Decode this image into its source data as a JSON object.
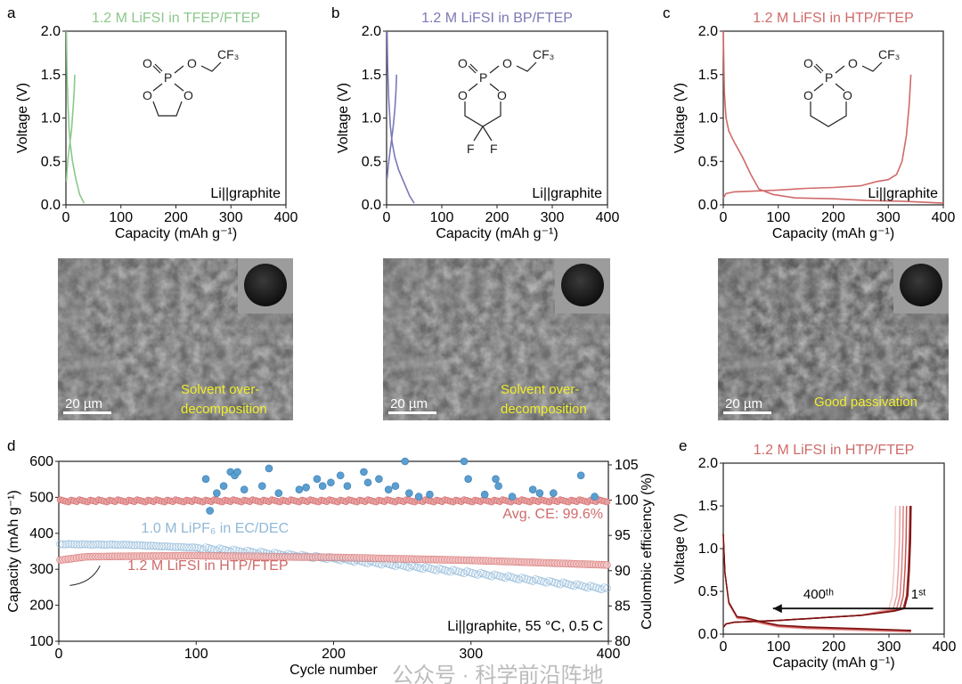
{
  "panel_letters": [
    "a",
    "b",
    "c",
    "d",
    "e"
  ],
  "sem": [
    {
      "caption_line1": "Solvent over-",
      "caption_line2": "decomposition",
      "scale_bar": "20 µm"
    },
    {
      "caption_line1": "Solvent over-",
      "caption_line2": "decomposition",
      "scale_bar": "20 µm"
    },
    {
      "caption_line1": "Good passivation",
      "caption_line2": "",
      "scale_bar": "20 µm"
    }
  ],
  "molecules": {
    "a": {
      "atoms": [
        "O",
        "P",
        "O",
        "CF₃",
        "O",
        "O"
      ]
    },
    "b": {
      "atoms": [
        "O",
        "P",
        "O",
        "CF₃",
        "O",
        "O",
        "F",
        "F"
      ]
    },
    "c": {
      "atoms": [
        "O",
        "P",
        "O",
        "CF₃",
        "O",
        "O"
      ]
    }
  },
  "watermark": "公众号 · 科学前沿阵地",
  "colors": {
    "green": "#8cc88c",
    "purple": "#7b78b8",
    "red": "#d06a6a",
    "blue": "#8fb8d8",
    "dark_red": "#7a1010"
  },
  "chart_data": [
    {
      "id": "a",
      "type": "line",
      "title": "1.2 M LiFSI in TFEP/FTEP",
      "xlabel": "Capacity (mAh g⁻¹)",
      "ylabel": "Voltage (V)",
      "xlim": [
        0,
        400
      ],
      "ylim": [
        0,
        2
      ],
      "xticks": [
        "0",
        "100",
        "200",
        "300",
        "400"
      ],
      "yticks": [
        "0.0",
        "0.5",
        "1.0",
        "1.5",
        "2.0"
      ],
      "annotation": "Li||graphite",
      "series": [
        {
          "name": "discharge",
          "x": [
            1,
            2,
            4,
            6,
            8,
            12,
            18,
            25,
            33
          ],
          "y": [
            2.0,
            1.5,
            1.1,
            0.85,
            0.7,
            0.5,
            0.3,
            0.12,
            0.02
          ]
        },
        {
          "name": "charge",
          "x": [
            1,
            2,
            4,
            7,
            10,
            13,
            15,
            16
          ],
          "y": [
            0.27,
            0.4,
            0.55,
            0.7,
            0.85,
            1.1,
            1.3,
            1.5
          ]
        }
      ]
    },
    {
      "id": "b",
      "type": "line",
      "title": "1.2 M LiFSI in BP/FTEP",
      "xlabel": "Capacity (mAh g⁻¹)",
      "ylabel": "Voltage (V)",
      "xlim": [
        0,
        400
      ],
      "ylim": [
        0,
        2
      ],
      "xticks": [
        "0",
        "100",
        "200",
        "300",
        "400"
      ],
      "yticks": [
        "0.0",
        "0.5",
        "1.0",
        "1.5",
        "2.0"
      ],
      "annotation": "Li||graphite",
      "series": [
        {
          "name": "discharge",
          "x": [
            1,
            2,
            4,
            7,
            10,
            15,
            22,
            32,
            42,
            50
          ],
          "y": [
            2.0,
            1.6,
            1.2,
            0.9,
            0.72,
            0.55,
            0.4,
            0.25,
            0.1,
            0.02
          ]
        },
        {
          "name": "charge",
          "x": [
            1,
            3,
            6,
            9,
            12,
            15,
            17,
            18
          ],
          "y": [
            0.3,
            0.45,
            0.6,
            0.75,
            0.9,
            1.1,
            1.3,
            1.5
          ]
        }
      ]
    },
    {
      "id": "c",
      "type": "line",
      "title": "1.2 M LiFSI in HTP/FTEP",
      "xlabel": "Capacity (mAh g⁻¹)",
      "ylabel": "Voltage (V)",
      "xlim": [
        0,
        400
      ],
      "ylim": [
        0,
        2
      ],
      "xticks": [
        "0",
        "100",
        "200",
        "300",
        "400"
      ],
      "yticks": [
        "0.0",
        "0.5",
        "1.0",
        "1.5",
        "2.0"
      ],
      "annotation": "Li||graphite",
      "series": [
        {
          "name": "discharge",
          "x": [
            0,
            2,
            5,
            10,
            20,
            35,
            50,
            65,
            90,
            130,
            200,
            260,
            330,
            400
          ],
          "y": [
            2.0,
            1.3,
            1.0,
            0.85,
            0.72,
            0.55,
            0.35,
            0.18,
            0.12,
            0.08,
            0.07,
            0.05,
            0.04,
            0.02
          ]
        },
        {
          "name": "charge",
          "x": [
            0,
            5,
            20,
            60,
            100,
            150,
            200,
            250,
            280,
            300,
            315,
            325,
            333,
            338,
            341
          ],
          "y": [
            0.08,
            0.13,
            0.15,
            0.16,
            0.17,
            0.19,
            0.2,
            0.22,
            0.27,
            0.29,
            0.35,
            0.5,
            0.8,
            1.15,
            1.5
          ]
        }
      ]
    },
    {
      "id": "d",
      "type": "scatter",
      "xlabel": "Cycle number",
      "ylabel": "Capacity (mAh g⁻¹)",
      "y2label": "Coulombic efficiency (%)",
      "xlim": [
        0,
        400
      ],
      "ylim": [
        100,
        600
      ],
      "y2lim": [
        80,
        105.5
      ],
      "xticks": [
        "0",
        "100",
        "200",
        "300",
        "400"
      ],
      "yticks": [
        "100",
        "200",
        "300",
        "400",
        "500",
        "600"
      ],
      "y2ticks": [
        "80",
        "85",
        "90",
        "95",
        "100",
        "105"
      ],
      "annotation": "Li||graphite, 55 °C, 0.5 C",
      "avg_ce_label": "Avg. CE: 99.6%",
      "series": [
        {
          "name": "1.0 M LiPF₆ in EC/DEC",
          "kind": "capacity",
          "x": [
            0,
            50,
            100,
            150,
            200,
            250,
            300,
            350,
            400
          ],
          "y": [
            370,
            368,
            360,
            345,
            330,
            310,
            290,
            268,
            245
          ]
        },
        {
          "name": "1.2 M LiFSI in HTP/FTEP",
          "kind": "capacity",
          "x": [
            0,
            20,
            100,
            200,
            300,
            400
          ],
          "y": [
            325,
            335,
            338,
            333,
            325,
            312
          ]
        },
        {
          "name": "1.2 M LiFSI in HTP/FTEP CE",
          "kind": "ce",
          "mean": 99.6
        },
        {
          "name": "1.0 M LiPF₆ in EC/DEC CE",
          "kind": "ce",
          "x": [
            107,
            110,
            115,
            120,
            125,
            128,
            130,
            135,
            148,
            153,
            160,
            175,
            180,
            188,
            192,
            198,
            205,
            210,
            222,
            225,
            233,
            240,
            245,
            252,
            255,
            262,
            270,
            295,
            298,
            310,
            318,
            320,
            330,
            345,
            350,
            360,
            380,
            390
          ],
          "y": [
            103,
            98.5,
            101,
            102,
            104,
            103.5,
            104,
            101.5,
            102,
            104.5,
            101,
            101.5,
            101.8,
            103,
            102,
            102.5,
            103.5,
            102,
            104,
            102.5,
            103,
            101.5,
            102,
            105.5,
            101,
            100.5,
            100.8,
            105.5,
            103,
            100.8,
            103,
            102,
            100.5,
            101.5,
            101,
            101,
            103.5,
            100.5
          ]
        }
      ]
    },
    {
      "id": "e",
      "type": "line",
      "title": "1.2 M LiFSI in HTP/FTEP",
      "xlabel": "Capacity (mAh g⁻¹)",
      "ylabel": "Voltage (V)",
      "xlim": [
        0,
        400
      ],
      "ylim": [
        0,
        2
      ],
      "xticks": [
        "0",
        "100",
        "200",
        "300",
        "400"
      ],
      "yticks": [
        "0.0",
        "0.5",
        "1.0",
        "1.5",
        "2.0"
      ],
      "arrow_from_label": "400ᵗʰ",
      "arrow_to_label": "1ˢᵗ",
      "cycles_end_capacity": [
        312,
        320,
        326,
        332,
        338,
        340
      ],
      "discharge": {
        "x": [
          0,
          3,
          10,
          25,
          40,
          70,
          100,
          150,
          250,
          340
        ],
        "y": [
          1.15,
          0.7,
          0.35,
          0.18,
          0.17,
          0.12,
          0.08,
          0.06,
          0.04,
          0.02
        ]
      }
    }
  ]
}
